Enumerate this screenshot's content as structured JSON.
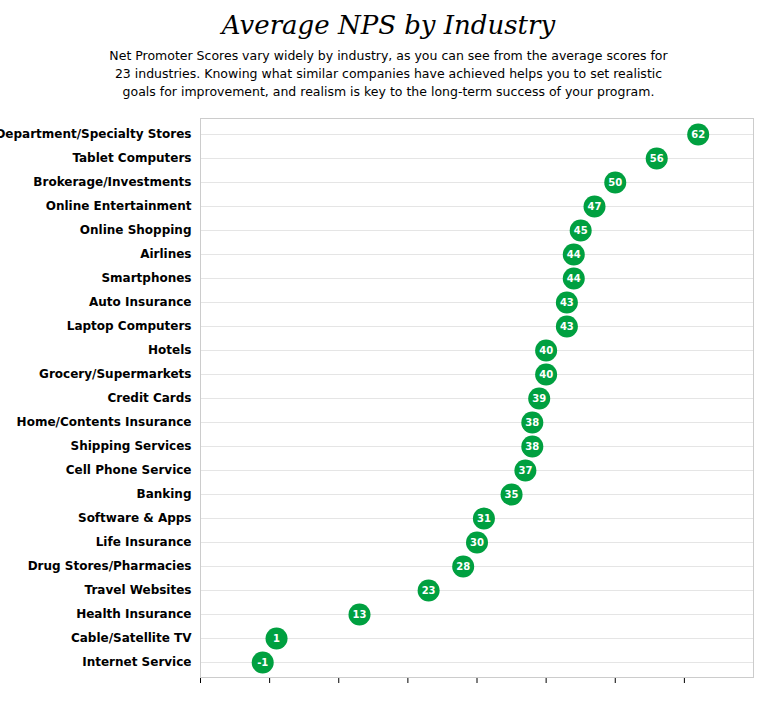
{
  "chart_data": {
    "type": "dot",
    "orientation": "horizontal",
    "title": "Average NPS by Industry",
    "subtitle": "Net Promoter Scores vary widely by industry, as you can see from the average scores for\n23 industries. Knowing what similar companies have achieved helps you to set realistic\ngoals for improvement, and realism is key to the long-term success of your program.",
    "categories": [
      "Department/Specialty Stores",
      "Tablet Computers",
      "Brokerage/Investments",
      "Online Entertainment",
      "Online Shopping",
      "Airlines",
      "Smartphones",
      "Auto Insurance",
      "Laptop Computers",
      "Hotels",
      "Grocery/Supermarkets",
      "Credit Cards",
      "Home/Contents Insurance",
      "Shipping Services",
      "Cell Phone Service",
      "Banking",
      "Software & Apps",
      "Life Insurance",
      "Drug Stores/Pharmacies",
      "Travel Websites",
      "Health Insurance",
      "Cable/Satellite TV",
      "Internet Service"
    ],
    "values": [
      62,
      56,
      50,
      47,
      45,
      44,
      44,
      43,
      43,
      40,
      40,
      39,
      38,
      38,
      37,
      35,
      31,
      30,
      28,
      23,
      13,
      1,
      -1
    ],
    "color": "#00a040",
    "xlim": [
      -10,
      70
    ],
    "xticks": [
      -10,
      0,
      10,
      20,
      30,
      40,
      50,
      60
    ],
    "grid": true,
    "data_labels": true,
    "tick_labels": "y"
  }
}
